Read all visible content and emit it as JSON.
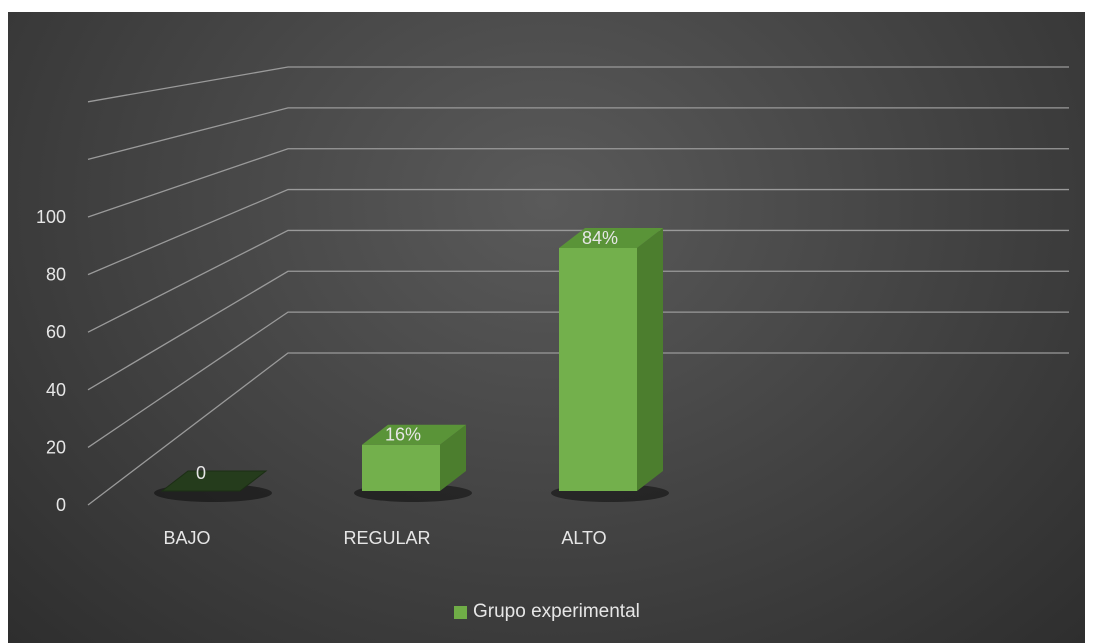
{
  "chart_data": {
    "type": "bar",
    "style": "3d-column",
    "categories": [
      "BAJO",
      "REGULAR",
      "ALTO"
    ],
    "series": [
      {
        "name": "Grupo experimental",
        "values": [
          0,
          16,
          84
        ],
        "data_labels": [
          "0",
          "16%",
          "84%"
        ],
        "color": "#70ad47"
      }
    ],
    "y_ticks": [
      "0",
      "20",
      "40",
      "60",
      "80",
      "100"
    ],
    "ylim": [
      0,
      140
    ],
    "grid": true,
    "legend_position": "bottom",
    "background": "#404040"
  }
}
